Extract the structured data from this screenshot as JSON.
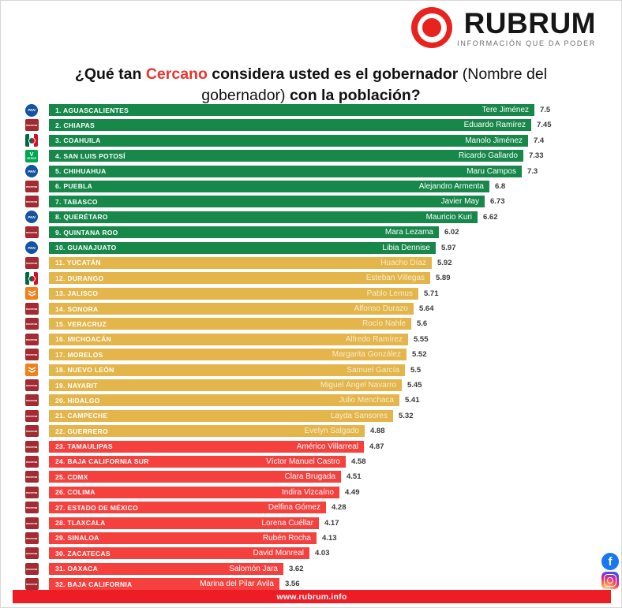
{
  "brand": {
    "name": "RUBRUM",
    "tagline": "INFORMACIÓN QUE DA PODER",
    "logo_color": "#e8231f"
  },
  "title": {
    "part1": "¿Qué tan ",
    "highlight": "Cercano",
    "part2": " considera usted es el gobernador ",
    "part3_light": "(Nombre del gobernador)",
    "part4": " con la población?"
  },
  "footer": {
    "url": "www.rubrum.info"
  },
  "social": {
    "icons": [
      "facebook",
      "instagram"
    ]
  },
  "colors": {
    "green": "#17874a",
    "yellow": "#e3b54a",
    "red": "#f5413e",
    "footer_red": "#ee1c25",
    "highlight_red": "#e8352e",
    "value_text": "#3a3a3a"
  },
  "parties": {
    "PAN": {
      "label": "PAN",
      "bg": "#1453a3"
    },
    "MORENA": {
      "label": "morena",
      "bg": "#a32a31"
    },
    "PRI": {
      "label": "PRI",
      "bg": "tricolor"
    },
    "VERDE": {
      "label": "VERDE",
      "bg": "#00a650"
    },
    "MC": {
      "label": "MC",
      "bg": "#f08019"
    }
  },
  "chart_data": {
    "type": "bar",
    "orientation": "horizontal",
    "title": "¿Qué tan Cercano considera usted es el gobernador (Nombre del gobernador) con la población?",
    "xlabel": "",
    "ylabel": "",
    "xlim": [
      0,
      8
    ],
    "grid": false,
    "legend": "none",
    "color_groups": {
      "green": "ranks 1-10",
      "yellow": "ranks 11-22",
      "red": "ranks 23-32"
    },
    "items": [
      {
        "rank": 1,
        "state": "AGUASCALIENTES",
        "governor": "Tere Jiménez",
        "party": "PAN",
        "value": 7.5,
        "value_label": "7.5",
        "color": "green"
      },
      {
        "rank": 2,
        "state": "CHIAPAS",
        "governor": "Eduardo Ramírez",
        "party": "MORENA",
        "value": 7.45,
        "value_label": "7.45",
        "color": "green"
      },
      {
        "rank": 3,
        "state": "COAHUILA",
        "governor": "Manolo Jiménez",
        "party": "PRI",
        "value": 7.4,
        "value_label": "7.4",
        "color": "green"
      },
      {
        "rank": 4,
        "state": "SAN LUIS POTOSÍ",
        "governor": "Ricardo Gallardo",
        "party": "VERDE",
        "value": 7.33,
        "value_label": "7.33",
        "color": "green"
      },
      {
        "rank": 5,
        "state": "CHIHUAHUA",
        "governor": "Maru Campos",
        "party": "PAN",
        "value": 7.3,
        "value_label": "7.3",
        "color": "green"
      },
      {
        "rank": 6,
        "state": "PUEBLA",
        "governor": "Alejandro Armenta",
        "party": "MORENA",
        "value": 6.8,
        "value_label": "6.8",
        "color": "green"
      },
      {
        "rank": 7,
        "state": "TABASCO",
        "governor": "Javier May",
        "party": "MORENA",
        "value": 6.73,
        "value_label": "6.73",
        "color": "green"
      },
      {
        "rank": 8,
        "state": "QUERÉTARO",
        "governor": "Mauricio Kuri",
        "party": "PAN",
        "value": 6.62,
        "value_label": "6.62",
        "color": "green"
      },
      {
        "rank": 9,
        "state": "QUINTANA ROO",
        "governor": "Mara Lezama",
        "party": "MORENA",
        "value": 6.02,
        "value_label": "6.02",
        "color": "green"
      },
      {
        "rank": 10,
        "state": "GUANAJUATO",
        "governor": "Libia Dennise",
        "party": "PAN",
        "value": 5.97,
        "value_label": "5.97",
        "color": "green"
      },
      {
        "rank": 11,
        "state": "YUCATÁN",
        "governor": "Huacho Díaz",
        "party": "MORENA",
        "value": 5.92,
        "value_label": "5.92",
        "color": "yellow"
      },
      {
        "rank": 12,
        "state": "DURANGO",
        "governor": "Esteban Villegas",
        "party": "PRI",
        "value": 5.89,
        "value_label": "5.89",
        "color": "yellow"
      },
      {
        "rank": 13,
        "state": "JALISCO",
        "governor": "Pablo Lemus",
        "party": "MC",
        "value": 5.71,
        "value_label": "5.71",
        "color": "yellow"
      },
      {
        "rank": 14,
        "state": "SONORA",
        "governor": "Alfonso Durazo",
        "party": "MORENA",
        "value": 5.64,
        "value_label": "5.64",
        "color": "yellow"
      },
      {
        "rank": 15,
        "state": "VERACRUZ",
        "governor": "Rocío Nahle",
        "party": "MORENA",
        "value": 5.6,
        "value_label": "5.6",
        "color": "yellow"
      },
      {
        "rank": 16,
        "state": "MICHOACÁN",
        "governor": "Alfredo Ramírez",
        "party": "MORENA",
        "value": 5.55,
        "value_label": "5.55",
        "color": "yellow"
      },
      {
        "rank": 17,
        "state": "MORELOS",
        "governor": "Margarita González",
        "party": "MORENA",
        "value": 5.52,
        "value_label": "5.52",
        "color": "yellow"
      },
      {
        "rank": 18,
        "state": "NUEVO LEÓN",
        "governor": "Samuel García",
        "party": "MC",
        "value": 5.5,
        "value_label": "5.5",
        "color": "yellow"
      },
      {
        "rank": 19,
        "state": "NAYARIT",
        "governor": "Miguel Ángel Navarro",
        "party": "MORENA",
        "value": 5.45,
        "value_label": "5.45",
        "color": "yellow"
      },
      {
        "rank": 20,
        "state": "HIDALGO",
        "governor": "Julio Menchaca",
        "party": "MORENA",
        "value": 5.41,
        "value_label": "5.41",
        "color": "yellow"
      },
      {
        "rank": 21,
        "state": "CAMPECHE",
        "governor": "Layda Sansores",
        "party": "MORENA",
        "value": 5.32,
        "value_label": "5.32",
        "color": "yellow"
      },
      {
        "rank": 22,
        "state": "GUERRERO",
        "governor": "Evelyn Salgado",
        "party": "MORENA",
        "value": 4.88,
        "value_label": "4.88",
        "color": "yellow"
      },
      {
        "rank": 23,
        "state": "TAMAULIPAS",
        "governor": "Américo Villarreal",
        "party": "MORENA",
        "value": 4.87,
        "value_label": "4.87",
        "color": "red"
      },
      {
        "rank": 24,
        "state": "BAJA CALIFORNIA SUR",
        "governor": "Víctor Manuel Castro",
        "party": "MORENA",
        "value": 4.58,
        "value_label": "4.58",
        "color": "red"
      },
      {
        "rank": 25,
        "state": "CDMX",
        "governor": "Clara Brugada",
        "party": "MORENA",
        "value": 4.51,
        "value_label": "4.51",
        "color": "red"
      },
      {
        "rank": 26,
        "state": "COLIMA",
        "governor": "Indira Vizcaíno",
        "party": "MORENA",
        "value": 4.49,
        "value_label": "4.49",
        "color": "red"
      },
      {
        "rank": 27,
        "state": "ESTADO DE MÉXICO",
        "governor": "Delfina Gómez",
        "party": "MORENA",
        "value": 4.28,
        "value_label": "4.28",
        "color": "red"
      },
      {
        "rank": 28,
        "state": "TLAXCALA",
        "governor": "Lorena Cuéllar",
        "party": "MORENA",
        "value": 4.17,
        "value_label": "4.17",
        "color": "red"
      },
      {
        "rank": 29,
        "state": "SINALOA",
        "governor": "Rubén Rocha",
        "party": "MORENA",
        "value": 4.13,
        "value_label": "4.13",
        "color": "red"
      },
      {
        "rank": 30,
        "state": "ZACATECAS",
        "governor": "David Monreal",
        "party": "MORENA",
        "value": 4.03,
        "value_label": "4.03",
        "color": "red"
      },
      {
        "rank": 31,
        "state": "OAXACA",
        "governor": "Salomón Jara",
        "party": "MORENA",
        "value": 3.62,
        "value_label": "3.62",
        "color": "red"
      },
      {
        "rank": 32,
        "state": "BAJA CALIFORNIA",
        "governor": "Marina del Pilar Ávila",
        "party": "MORENA",
        "value": 3.56,
        "value_label": "3.56",
        "color": "red"
      }
    ]
  }
}
